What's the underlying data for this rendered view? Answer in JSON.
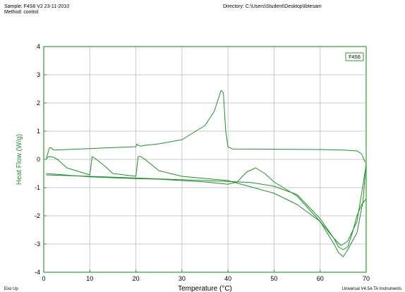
{
  "header": {
    "sample": "Sample: F4S6 V2 23-11-2010",
    "method": "Method: control",
    "directory": "Directory: C:\\Users\\Student\\Desktop\\Ibtesam"
  },
  "footer": {
    "left": "Exo Up",
    "right": "Universal V4.5A TA Instruments"
  },
  "chart_data": {
    "type": "line",
    "xlabel": "Temperature (°C)",
    "ylabel": "Heat Flow (W/g)",
    "xlim": [
      0,
      70
    ],
    "ylim": [
      -4,
      4
    ],
    "xticks": [
      0,
      10,
      20,
      30,
      40,
      50,
      60,
      70
    ],
    "yticks": [
      -4,
      -3,
      -2,
      -1,
      0,
      1,
      2,
      3,
      4
    ],
    "legend": {
      "label": "F4S6",
      "placement": "top-right"
    },
    "grid": true,
    "color": "#1f8f2a",
    "axis_color": "#2e9e2e",
    "series": [
      {
        "x": [
          0.6,
          1.2,
          1.5,
          2.2,
          5,
          10,
          15,
          20,
          20.2,
          20.5,
          21,
          22,
          25,
          30,
          35,
          37,
          38,
          38.5,
          39,
          39.5,
          40,
          41,
          50,
          60,
          65,
          68,
          69,
          69.5,
          69.8
        ],
        "y": [
          0.05,
          0.4,
          0.42,
          0.33,
          0.35,
          0.38,
          0.42,
          0.45,
          0.55,
          0.5,
          0.47,
          0.5,
          0.55,
          0.7,
          1.2,
          1.7,
          2.2,
          2.45,
          2.35,
          1.0,
          0.45,
          0.37,
          0.36,
          0.35,
          0.33,
          0.3,
          0.2,
          0,
          -0.1
        ]
      },
      {
        "x": [
          0.5,
          1,
          2,
          3,
          5,
          10,
          10.5,
          11,
          13,
          15,
          20,
          20.5,
          21,
          22,
          25,
          30,
          40,
          50,
          55,
          60,
          63,
          64,
          65,
          66,
          67,
          68,
          69,
          70
        ],
        "y": [
          0,
          0.1,
          0.08,
          0.0,
          -0.3,
          -0.55,
          0.1,
          0.05,
          -0.2,
          -0.5,
          -0.6,
          0.1,
          0.1,
          0.0,
          -0.4,
          -0.6,
          -0.75,
          -1.2,
          -1.6,
          -2.2,
          -2.8,
          -3.1,
          -3.2,
          -3.1,
          -2.6,
          -2.0,
          -1.6,
          -1.4
        ]
      },
      {
        "x": [
          70,
          69.3,
          68,
          66,
          65,
          64,
          63,
          60,
          55,
          50,
          48,
          46,
          44,
          42,
          40,
          35,
          30,
          25,
          20,
          10,
          0.5
        ],
        "y": [
          -0.1,
          -1.5,
          -2.6,
          -3.2,
          -3.45,
          -3.3,
          -3.0,
          -2.2,
          -1.3,
          -0.8,
          -0.5,
          -0.3,
          -0.45,
          -0.8,
          -0.88,
          -0.8,
          -0.75,
          -0.7,
          -0.68,
          -0.62,
          -0.5
        ]
      },
      {
        "x": [
          70,
          69,
          68,
          66,
          64.5,
          63,
          60,
          55,
          50,
          45,
          40,
          30,
          20,
          10,
          0.5
        ],
        "y": [
          -0.2,
          -1.2,
          -2.2,
          -2.9,
          -3.05,
          -2.8,
          -2.1,
          -1.25,
          -0.95,
          -0.82,
          -0.78,
          -0.72,
          -0.66,
          -0.6,
          -0.55
        ]
      }
    ]
  }
}
